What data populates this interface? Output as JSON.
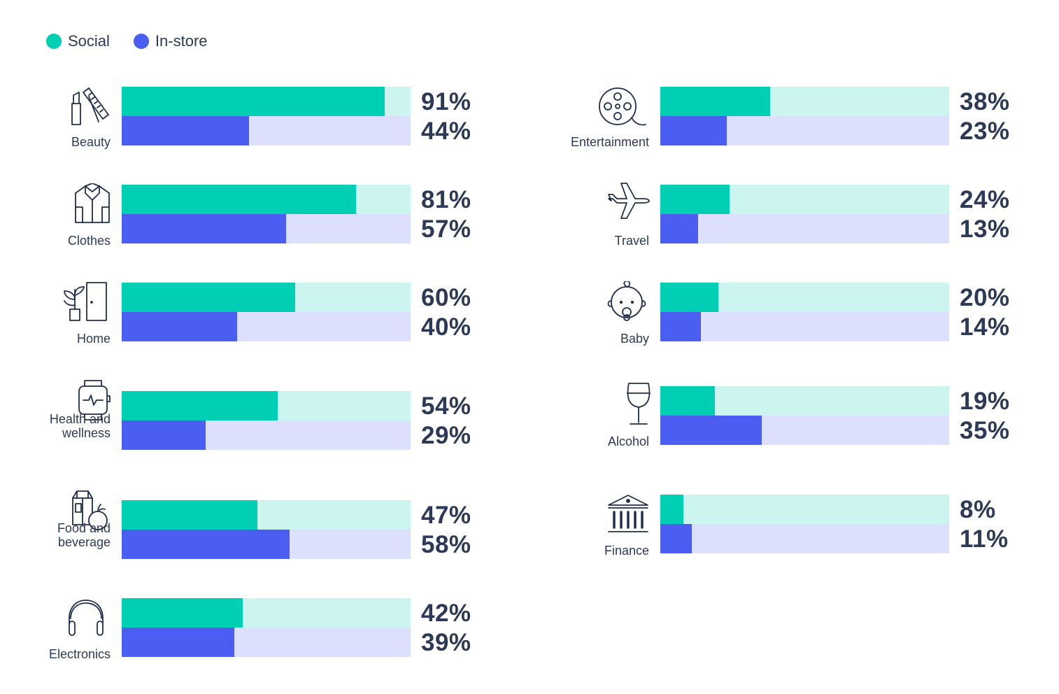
{
  "legend": {
    "social_label": "Social",
    "instore_label": "In-store"
  },
  "colors": {
    "social": "#00cfb4",
    "social_track": "#cdf5ef",
    "instore": "#4a5ef2",
    "instore_track": "#dde0fc",
    "text": "#2c3a57"
  },
  "chart_data": {
    "type": "bar",
    "orientation": "horizontal",
    "series": [
      {
        "name": "Social",
        "values": [
          91,
          81,
          60,
          54,
          47,
          42,
          38,
          24,
          20,
          19,
          8
        ]
      },
      {
        "name": "In-store",
        "values": [
          44,
          57,
          40,
          29,
          58,
          39,
          23,
          13,
          14,
          35,
          11
        ]
      }
    ],
    "categories": [
      "Beauty",
      "Clothes",
      "Home",
      "Health and wellness",
      "Food and beverage",
      "Electronics",
      "Entertainment",
      "Travel",
      "Baby",
      "Alcohol",
      "Finance"
    ],
    "xlim": [
      0,
      100
    ],
    "legend_position": "top-left",
    "items": [
      {
        "label": "Beauty",
        "icon": "lipstick-brush-icon",
        "social": 91,
        "social_text": "91%",
        "instore": 44,
        "instore_text": "44%"
      },
      {
        "label": "Clothes",
        "icon": "shirt-icon",
        "social": 81,
        "social_text": "81%",
        "instore": 57,
        "instore_text": "57%"
      },
      {
        "label": "Home",
        "icon": "plant-door-icon",
        "social": 60,
        "social_text": "60%",
        "instore": 40,
        "instore_text": "40%"
      },
      {
        "label": "Health and\nwellness",
        "icon": "smartwatch-icon",
        "social": 54,
        "social_text": "54%",
        "instore": 29,
        "instore_text": "29%"
      },
      {
        "label": "Food and\nbeverage",
        "icon": "milk-apple-icon",
        "social": 47,
        "social_text": "47%",
        "instore": 58,
        "instore_text": "58%"
      },
      {
        "label": "Electronics",
        "icon": "headphones-icon",
        "social": 42,
        "social_text": "42%",
        "instore": 39,
        "instore_text": "39%"
      },
      {
        "label": "Entertainment",
        "icon": "film-reel-icon",
        "social": 38,
        "social_text": "38%",
        "instore": 23,
        "instore_text": "23%"
      },
      {
        "label": "Travel",
        "icon": "airplane-icon",
        "social": 24,
        "social_text": "24%",
        "instore": 13,
        "instore_text": "13%"
      },
      {
        "label": "Baby",
        "icon": "baby-face-icon",
        "social": 20,
        "social_text": "20%",
        "instore": 14,
        "instore_text": "14%"
      },
      {
        "label": "Alcohol",
        "icon": "wine-glass-icon",
        "social": 19,
        "social_text": "19%",
        "instore": 35,
        "instore_text": "35%"
      },
      {
        "label": "Finance",
        "icon": "bank-icon",
        "social": 8,
        "social_text": "8%",
        "instore": 11,
        "instore_text": "11%"
      }
    ]
  }
}
